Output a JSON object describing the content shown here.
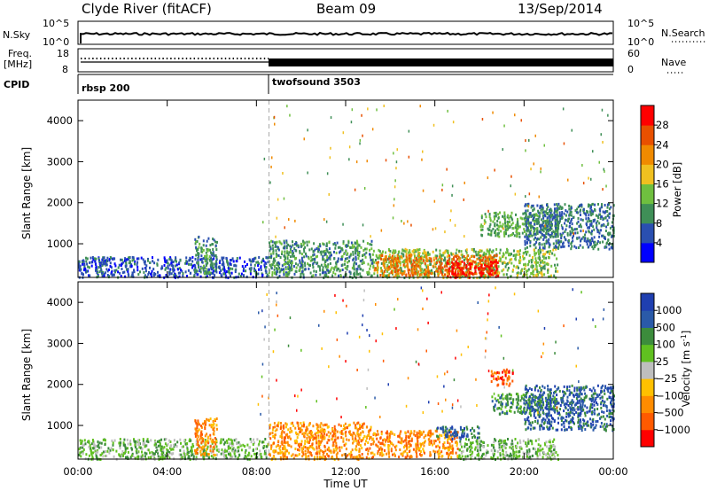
{
  "header": {
    "title_left": "Clyde River (fitACF)",
    "title_center": "Beam 09",
    "title_right": "13/Sep/2014"
  },
  "strip_labels": {
    "nsky": "N.Sky",
    "nsky_ticks": [
      "10^5",
      "10^0"
    ],
    "nsearch": "N.Search",
    "nsearch_ticks": [
      "10^5",
      "10^0"
    ],
    "freq": "Freq.",
    "freq_unit": "[MHz]",
    "freq_ticks": [
      "18",
      "8"
    ],
    "nave": "Nave",
    "nave_ticks": [
      "60",
      "0"
    ],
    "cpid": "CPID",
    "cpid_segments": [
      "rbsp 200",
      "twofsound 3503"
    ]
  },
  "colors": {
    "power": [
      "#0000ff",
      "#2a4fb0",
      "#3f8f57",
      "#6fbf3f",
      "#f0c020",
      "#f08a00",
      "#e85000",
      "#ff0000"
    ],
    "velocity": [
      "#ff0000",
      "#ff5a00",
      "#ff8c00",
      "#ffc000",
      "#bebebe",
      "#60c020",
      "#3c8c3c",
      "#2a5aa8",
      "#1f3fb0"
    ],
    "ground_scatter": "#bebebe"
  },
  "chart_data": [
    {
      "type": "heatmap",
      "name": "power",
      "xlabel": "",
      "ylabel": "Slant Range [km]",
      "x_ticks": [
        "00:00",
        "04:00",
        "08:00",
        "12:00",
        "16:00",
        "20:00",
        "00:00"
      ],
      "x_range_hours": [
        0,
        24
      ],
      "y_ticks": [
        1000,
        2000,
        3000,
        4000
      ],
      "ylim": [
        180,
        4500
      ],
      "colorbar_label": "Power [dB]",
      "colorbar_ticks": [
        "4",
        "8",
        "12",
        "16",
        "20",
        "24",
        "28"
      ],
      "colorbar_range": [
        0,
        32
      ],
      "mode_change_hour": 8.5,
      "regions": [
        {
          "t": [
            0.0,
            8.5
          ],
          "r": [
            200,
            700
          ],
          "value": 6
        },
        {
          "t": [
            5.2,
            6.2
          ],
          "r": [
            300,
            1200
          ],
          "value": 10
        },
        {
          "t": [
            8.5,
            13.2
          ],
          "r": [
            200,
            1100
          ],
          "value": 10
        },
        {
          "t": [
            13.2,
            21.5
          ],
          "r": [
            200,
            900
          ],
          "value": 14
        },
        {
          "t": [
            13.2,
            18.8
          ],
          "r": [
            250,
            750
          ],
          "value": 24
        },
        {
          "t": [
            16.5,
            18.8
          ],
          "r": [
            200,
            600
          ],
          "value": 30
        },
        {
          "t": [
            18.0,
            21.5
          ],
          "r": [
            1200,
            1800
          ],
          "value": 12
        },
        {
          "t": [
            20.0,
            24.0
          ],
          "r": [
            900,
            2000
          ],
          "value": 8
        }
      ]
    },
    {
      "type": "heatmap",
      "name": "velocity",
      "xlabel": "Time UT",
      "ylabel": "Slant Range [km]",
      "x_ticks": [
        "00:00",
        "04:00",
        "08:00",
        "12:00",
        "16:00",
        "20:00",
        "00:00"
      ],
      "x_range_hours": [
        0,
        24
      ],
      "y_ticks": [
        1000,
        2000,
        3000,
        4000
      ],
      "ylim": [
        180,
        4500
      ],
      "colorbar_label": "Velocity [m s",
      "colorbar_unit_exp": "-1",
      "colorbar_unit_close": "]",
      "colorbar_ticks": [
        "1000",
        "500",
        "100",
        "25",
        "−25",
        "−100",
        "−500",
        "−1000"
      ],
      "mode_change_hour": 8.5,
      "regions": [
        {
          "t": [
            0.0,
            8.5
          ],
          "r": [
            200,
            700
          ],
          "class": 5
        },
        {
          "t": [
            5.2,
            6.2
          ],
          "r": [
            300,
            1200
          ],
          "class": 2
        },
        {
          "t": [
            8.5,
            13.2
          ],
          "r": [
            200,
            1100
          ],
          "class": 2
        },
        {
          "t": [
            13.2,
            17.0
          ],
          "r": [
            250,
            900
          ],
          "class": 2
        },
        {
          "t": [
            17.0,
            21.5
          ],
          "r": [
            200,
            700
          ],
          "class": 5
        },
        {
          "t": [
            16.0,
            18.0
          ],
          "r": [
            700,
            1000
          ],
          "class": 7
        },
        {
          "t": [
            18.5,
            21.5
          ],
          "r": [
            1300,
            1800
          ],
          "class": 6
        },
        {
          "t": [
            20.0,
            24.0
          ],
          "r": [
            900,
            2000
          ],
          "class": 7
        },
        {
          "t": [
            18.5,
            19.5
          ],
          "r": [
            2000,
            2400
          ],
          "class": 1
        }
      ]
    }
  ]
}
